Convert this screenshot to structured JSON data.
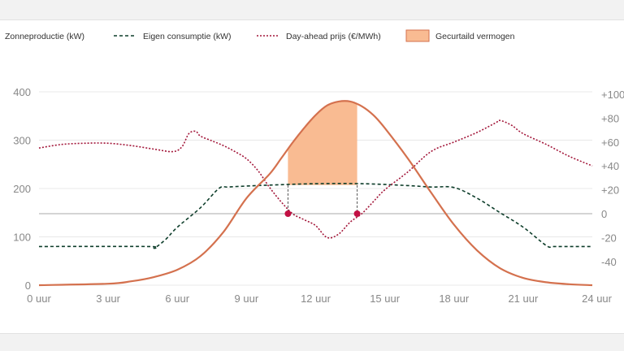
{
  "chart_data": {
    "type": "line",
    "legend": {
      "placement": "top",
      "items": [
        {
          "label": "Zonneproductie (kW)",
          "style": "solid",
          "color": "#d4714e"
        },
        {
          "label": "Eigen consumptie (kW)",
          "style": "dashed",
          "color": "#0d3d2a"
        },
        {
          "label": "Day-ahead prijs (€/MWh)",
          "style": "dotted",
          "color": "#a3173a"
        },
        {
          "label": "Gecurtaild vermogen",
          "style": "area",
          "color": "#f9bb92"
        }
      ]
    },
    "x_ticks": [
      "0 uur",
      "3 uur",
      "6 uur",
      "9 uur",
      "12 uur",
      "15 uur",
      "18 uur",
      "21 uur",
      "24 uur"
    ],
    "x_range": [
      0,
      24
    ],
    "y_left": {
      "range": [
        0,
        400
      ],
      "ticks": [
        "0",
        "100",
        "200",
        "300",
        "400"
      ]
    },
    "y_right": {
      "range": [
        -50,
        100
      ],
      "ticks": [
        "-40",
        "-20",
        "0",
        "+20",
        "+40",
        "+60",
        "+80",
        "+100"
      ],
      "tick_values": [
        -40,
        -20,
        0,
        20,
        40,
        60,
        80,
        100
      ]
    },
    "grid": true,
    "series": [
      {
        "name": "Zonneproductie (kW)",
        "axis": "left",
        "color": "#d4714e",
        "x": [
          0,
          3,
          4,
          5,
          6,
          7,
          8,
          9,
          10,
          10.5,
          11,
          11.5,
          12,
          12.5,
          13,
          13.5,
          14,
          14.5,
          15,
          16,
          17,
          18,
          19,
          20,
          21,
          22,
          23,
          24
        ],
        "y": [
          0,
          3,
          8,
          17,
          32,
          60,
          110,
          180,
          230,
          262,
          295,
          325,
          352,
          372,
          380,
          380,
          370,
          352,
          325,
          262,
          192,
          125,
          72,
          35,
          15,
          6,
          2,
          0
        ]
      },
      {
        "name": "Eigen consumptie (kW)",
        "axis": "left",
        "color": "#0d3d2a",
        "x": [
          0,
          4.7,
          5,
          5.5,
          6,
          7,
          7.8,
          8.2,
          9,
          10,
          12,
          14,
          16,
          17,
          18,
          19,
          20,
          21,
          22,
          22.3,
          23,
          24
        ],
        "y": [
          80,
          80,
          77,
          95,
          120,
          160,
          200,
          203,
          205,
          207,
          210,
          210,
          206,
          203,
          202,
          180,
          150,
          120,
          82,
          80,
          80,
          80
        ]
      },
      {
        "name": "Day-ahead prijs (€/MWh)",
        "axis": "right",
        "color": "#a3173a",
        "x": [
          0,
          1,
          2,
          3,
          4,
          5,
          5.8,
          6.2,
          6.5,
          6.8,
          7,
          7.5,
          8,
          8.5,
          9,
          9.5,
          10,
          10.5,
          11,
          11.5,
          12,
          12.5,
          13,
          13.5,
          14,
          14.5,
          15,
          16,
          17,
          18,
          19,
          19.8,
          20,
          20.5,
          21,
          22,
          23,
          24
        ],
        "y": [
          55,
          58,
          59,
          59,
          57,
          54,
          52,
          56,
          67,
          69,
          65,
          61,
          57,
          52,
          46,
          36,
          22,
          10,
          0,
          -5,
          -10,
          -20,
          -17,
          -7,
          0,
          10,
          20,
          35,
          52,
          60,
          68,
          76,
          78,
          74,
          67,
          58,
          48,
          40
        ]
      }
    ],
    "curtailed_area": {
      "name": "Gecurtaild vermogen",
      "x_start": 10.8,
      "x_end": 13.8,
      "floor_value": 207,
      "color": "#f9bb92"
    },
    "markers": [
      {
        "x": 10.8,
        "price": 0,
        "color": "#c21043"
      },
      {
        "x": 13.8,
        "price": 0,
        "color": "#c21043"
      }
    ],
    "zero_line": {
      "axis": "right",
      "value": 0
    }
  }
}
